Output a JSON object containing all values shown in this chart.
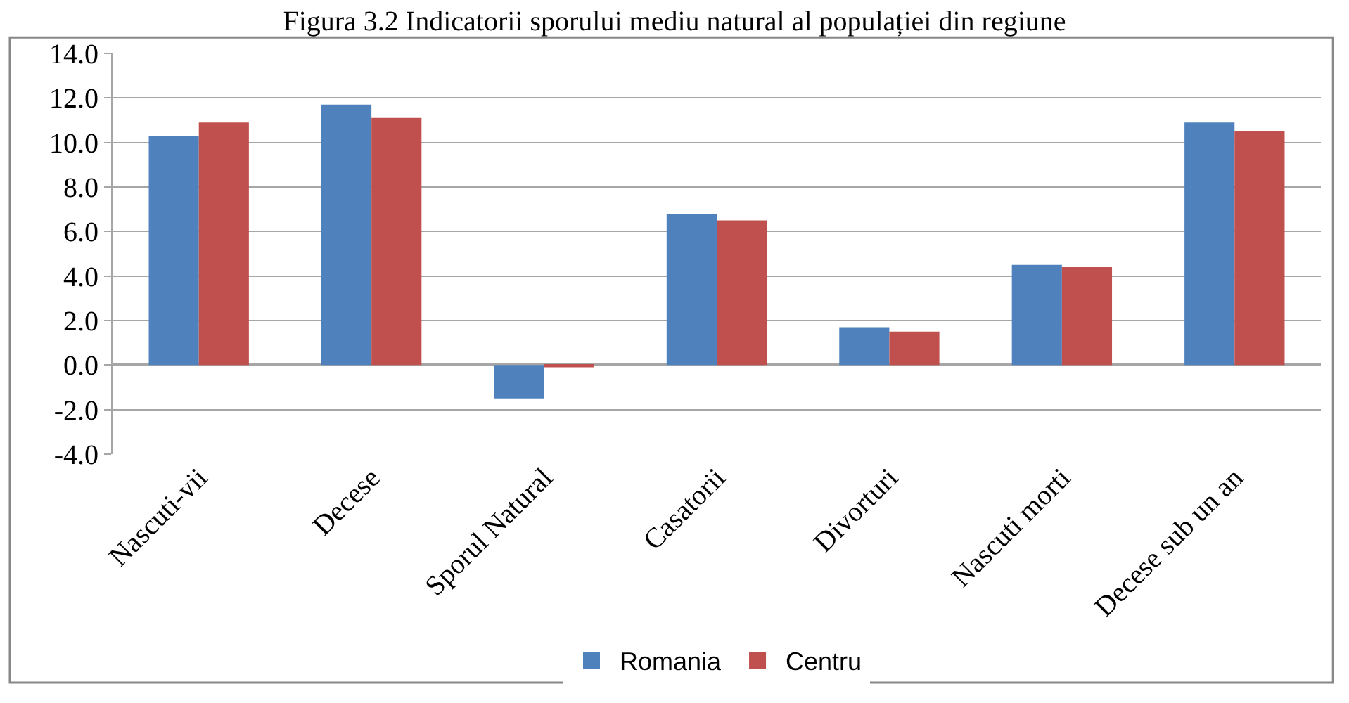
{
  "chart_data": {
    "type": "bar",
    "title": "Figura 3.2 Indicatorii sporului mediu natural al populației din regiune",
    "categories": [
      "Nascuti-vii",
      "Decese",
      "Sporul Natural",
      "Casatorii",
      "Divorturi",
      "Nascuti morti",
      "Decese sub un an"
    ],
    "series": [
      {
        "name": "Romania",
        "color": "#4f81bd",
        "values": [
          10.3,
          11.7,
          -1.5,
          6.8,
          1.7,
          4.5,
          10.9
        ]
      },
      {
        "name": "Centru",
        "color": "#c0504d",
        "values": [
          10.9,
          11.1,
          -0.1,
          6.5,
          1.5,
          4.4,
          10.5
        ]
      }
    ],
    "ylim": [
      -4,
      14
    ],
    "yticks": [
      {
        "value": -4,
        "label": "-4.0"
      },
      {
        "value": -2,
        "label": "-2.0"
      },
      {
        "value": 0,
        "label": "0.0"
      },
      {
        "value": 2,
        "label": "2.0"
      },
      {
        "value": 4,
        "label": "4.0"
      },
      {
        "value": 6,
        "label": "6.0"
      },
      {
        "value": 8,
        "label": "8.0"
      },
      {
        "value": 10,
        "label": "10.0"
      },
      {
        "value": 12,
        "label": "12.0"
      },
      {
        "value": 14,
        "label": "14.0"
      }
    ],
    "grid": "y",
    "legend": "bottom"
  }
}
